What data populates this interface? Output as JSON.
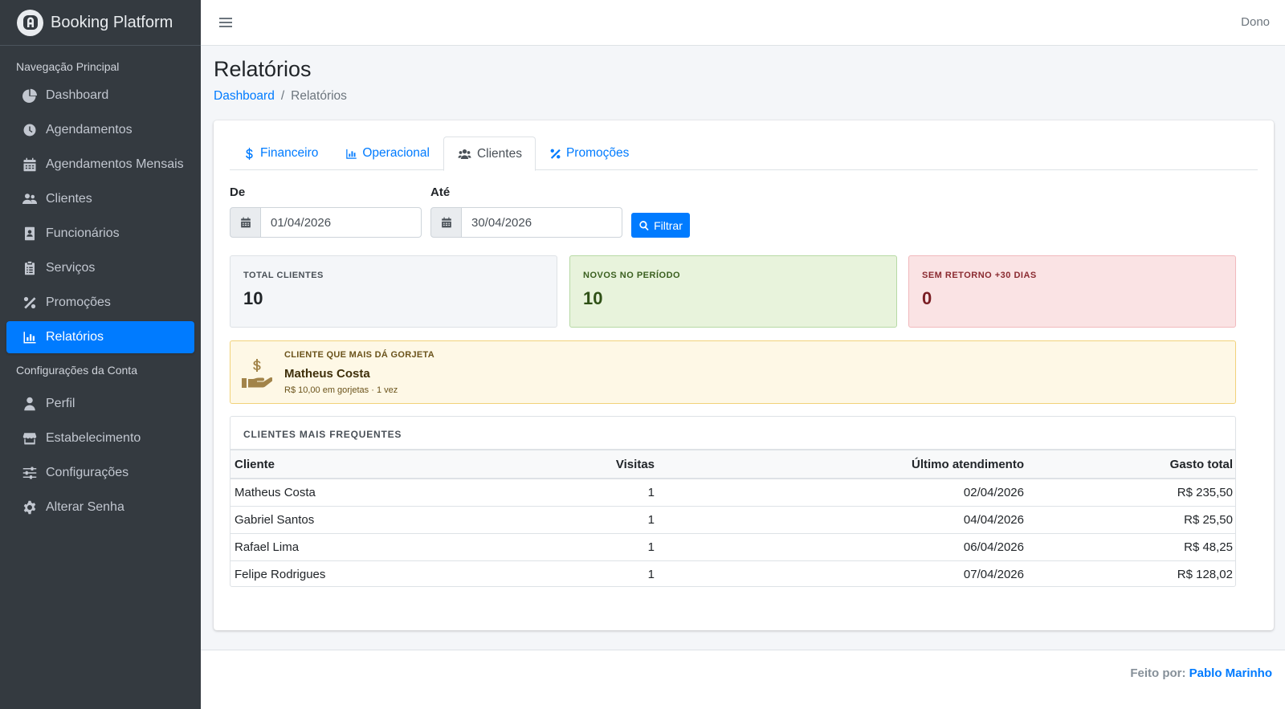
{
  "brand": {
    "name": "Booking Platform",
    "logo_icon": "calendar-a-logo-icon"
  },
  "sidebar": {
    "header_main": "Navegação Principal",
    "items_main": [
      {
        "label": "Dashboard",
        "icon": "chart-pie-icon"
      },
      {
        "label": "Agendamentos",
        "icon": "clock-icon"
      },
      {
        "label": "Agendamentos Mensais",
        "icon": "calendar-icon"
      },
      {
        "label": "Clientes",
        "icon": "users-icon"
      },
      {
        "label": "Funcionários",
        "icon": "id-badge-icon"
      },
      {
        "label": "Serviços",
        "icon": "clipboard-icon"
      },
      {
        "label": "Promoções",
        "icon": "percent-icon"
      },
      {
        "label": "Relatórios",
        "icon": "chart-bar-icon",
        "active": true
      }
    ],
    "header_account": "Configurações da Conta",
    "items_account": [
      {
        "label": "Perfil",
        "icon": "user-icon"
      },
      {
        "label": "Estabelecimento",
        "icon": "store-icon"
      },
      {
        "label": "Configurações",
        "icon": "sliders-icon"
      },
      {
        "label": "Alterar Senha",
        "icon": "gear-icon"
      }
    ]
  },
  "topbar": {
    "user": "Dono",
    "menu_icon": "hamburger-icon"
  },
  "page": {
    "title": "Relatórios",
    "breadcrumb": {
      "home": "Dashboard",
      "separator": "/",
      "current": "Relatórios"
    }
  },
  "tabs": [
    {
      "label": "Financeiro",
      "icon": "dollar-icon"
    },
    {
      "label": "Operacional",
      "icon": "chart-bar-icon"
    },
    {
      "label": "Clientes",
      "icon": "users-icon",
      "active": true
    },
    {
      "label": "Promoções",
      "icon": "percent-icon"
    }
  ],
  "filter": {
    "from_label": "De",
    "from_value": "01/04/2026",
    "to_label": "Até",
    "to_value": "30/04/2026",
    "button_label": "Filtrar"
  },
  "stats": {
    "total": {
      "label": "TOTAL CLIENTES",
      "value": "10"
    },
    "novos": {
      "label": "NOVOS NO PERÍODO",
      "value": "10"
    },
    "sem_retorno": {
      "label": "SEM RETORNO +30 DIAS",
      "value": "0"
    }
  },
  "top_tipper": {
    "label": "CLIENTE QUE MAIS DÁ GORJETA",
    "name": "Matheus Costa",
    "detail": "R$ 10,00 em gorjetas · 1 vez"
  },
  "frequent": {
    "title": "CLIENTES MAIS FREQUENTES",
    "columns": [
      "Cliente",
      "Visitas",
      "Último atendimento",
      "Gasto total"
    ],
    "rows": [
      [
        "Matheus Costa",
        "1",
        "02/04/2026",
        "R$ 235,50"
      ],
      [
        "Gabriel Santos",
        "1",
        "04/04/2026",
        "R$ 25,50"
      ],
      [
        "Rafael Lima",
        "1",
        "06/04/2026",
        "R$ 48,25"
      ],
      [
        "Felipe Rodrigues",
        "1",
        "07/04/2026",
        "R$ 128,02"
      ]
    ]
  },
  "footer": {
    "prefix": "Feito por:",
    "author": "Pablo Marinho"
  },
  "colors": {
    "sidebar": "#343a40",
    "accent": "#007bff",
    "background": "#f4f6f9"
  }
}
